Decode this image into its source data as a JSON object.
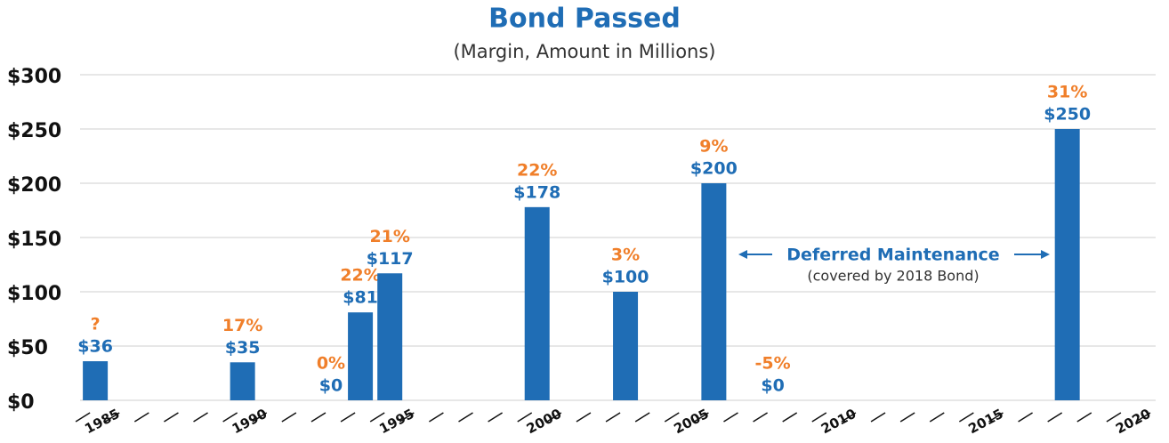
{
  "chart_data": {
    "type": "bar",
    "title": "Bond Passed",
    "subtitle": "(Margin, Amount in Millions)",
    "x": [
      1985,
      1990,
      1993,
      1994,
      1995,
      2000,
      2003,
      2006,
      2008,
      2018
    ],
    "values": [
      36,
      35,
      0,
      81,
      117,
      178,
      100,
      200,
      0,
      250
    ],
    "value_labels": [
      "$36",
      "$35",
      "$0",
      "$81",
      "$117",
      "$178",
      "$100",
      "$200",
      "$0",
      "$250"
    ],
    "margins": [
      "?",
      "17%",
      "0%",
      "22%",
      "21%",
      "22%",
      "3%",
      "9%",
      "-5%",
      "31%"
    ],
    "color": "#1f6db5",
    "xlim": [
      1984,
      2021
    ],
    "xticks": [
      1985,
      1990,
      1995,
      2000,
      2005,
      2010,
      2015,
      2020
    ],
    "ylim": [
      0,
      300
    ],
    "yticks": [
      {
        "value": 0,
        "label": "$0"
      },
      {
        "value": 50,
        "label": "$50"
      },
      {
        "value": 100,
        "label": "$100"
      },
      {
        "value": 150,
        "label": "$150"
      },
      {
        "value": 200,
        "label": "$200"
      },
      {
        "value": 250,
        "label": "$250"
      },
      {
        "value": 300,
        "label": "$300"
      }
    ],
    "grid": true,
    "annotation": {
      "text": "Deferred Maintenance",
      "subtext": "(covered by 2018 Bond)"
    }
  }
}
